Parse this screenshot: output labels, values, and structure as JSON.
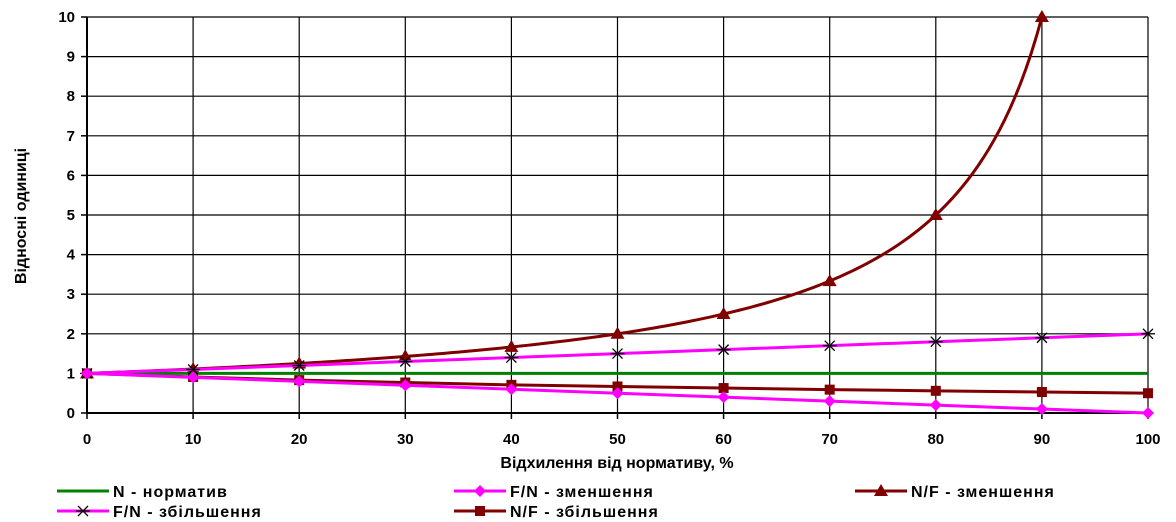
{
  "chart_data": {
    "type": "line",
    "title": "",
    "xlabel": "Відхилення від нормативу, %",
    "ylabel": "Відносні одиниці",
    "xlim": [
      0,
      100
    ],
    "ylim": [
      0,
      10
    ],
    "x_ticks": [
      "0",
      "10",
      "20",
      "30",
      "40",
      "50",
      "60",
      "70",
      "80",
      "90",
      "100"
    ],
    "y_ticks": [
      "0",
      "1",
      "2",
      "3",
      "4",
      "5",
      "6",
      "7",
      "8",
      "9",
      "10"
    ],
    "grid": true,
    "legend_position": "bottom",
    "series": [
      {
        "name": "N - норматив",
        "color": "#008000",
        "marker": "none",
        "x": [
          0,
          10,
          20,
          30,
          40,
          50,
          60,
          70,
          80,
          90,
          100
        ],
        "y": [
          1,
          1,
          1,
          1,
          1,
          1,
          1,
          1,
          1,
          1,
          1
        ]
      },
      {
        "name": "F/N - зменшення",
        "color": "#ff00ff",
        "marker": "diamond",
        "x": [
          0,
          10,
          20,
          30,
          40,
          50,
          60,
          70,
          80,
          90,
          100
        ],
        "y": [
          1.0,
          0.9,
          0.8,
          0.7,
          0.6,
          0.5,
          0.4,
          0.3,
          0.2,
          0.1,
          0.0
        ]
      },
      {
        "name": "N/F - зменшення",
        "color": "#800000",
        "marker": "triangle",
        "x": [
          0,
          10,
          20,
          30,
          40,
          50,
          60,
          70,
          80,
          90
        ],
        "y": [
          1.0,
          1.11,
          1.25,
          1.43,
          1.67,
          2.0,
          2.5,
          3.33,
          5.0,
          10.0
        ]
      },
      {
        "name": "F/N - збільшення",
        "color": "#ff00ff",
        "marker": "star",
        "x": [
          0,
          10,
          20,
          30,
          40,
          50,
          60,
          70,
          80,
          90,
          100
        ],
        "y": [
          1.0,
          1.1,
          1.2,
          1.3,
          1.4,
          1.5,
          1.6,
          1.7,
          1.8,
          1.9,
          2.0
        ]
      },
      {
        "name": "N/F - збільшення",
        "color": "#800000",
        "marker": "square",
        "x": [
          0,
          10,
          20,
          30,
          40,
          50,
          60,
          70,
          80,
          90,
          100
        ],
        "y": [
          1.0,
          0.91,
          0.83,
          0.77,
          0.71,
          0.67,
          0.63,
          0.59,
          0.56,
          0.53,
          0.5
        ]
      }
    ]
  }
}
